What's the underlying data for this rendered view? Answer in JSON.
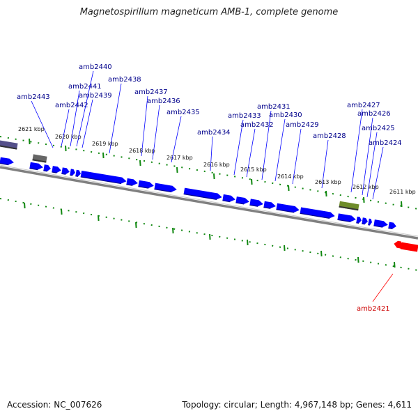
{
  "title": "Magnetospirillum magneticum AMB-1, complete genome",
  "accession": "Accession: NC_007626",
  "summary": "Topology: circular; Length: 4,967,148 bp; Genes: 4,611",
  "colors": {
    "forward_gene": "#0000ff",
    "reverse_gene": "#ff0000",
    "label_forward": "#00008b",
    "label_reverse": "#cc0000",
    "tick": "#118811",
    "backbone": "#808080",
    "grey_gene": "#666666",
    "purple_gene": "#55508a",
    "olive_gene": "#6e8c2a"
  },
  "ticks": [
    "2621 kbp",
    "2620 kbp",
    "2619 kbp",
    "2618 kbp",
    "2617 kbp",
    "2616 kbp",
    "2615 kbp",
    "2614 kbp",
    "2613 kbp",
    "2612 kbp",
    "2611 kbp"
  ],
  "forward_labels": [
    "amb2443",
    "amb2442",
    "amb2441",
    "amb2440",
    "amb2439",
    "amb2438",
    "amb2437",
    "amb2436",
    "amb2435",
    "amb2434",
    "amb2433",
    "amb2432",
    "amb2431",
    "amb2430",
    "amb2429",
    "amb2428",
    "amb2427",
    "amb2426",
    "amb2425",
    "amb2424"
  ],
  "reverse_labels": [
    "amb2421"
  ]
}
